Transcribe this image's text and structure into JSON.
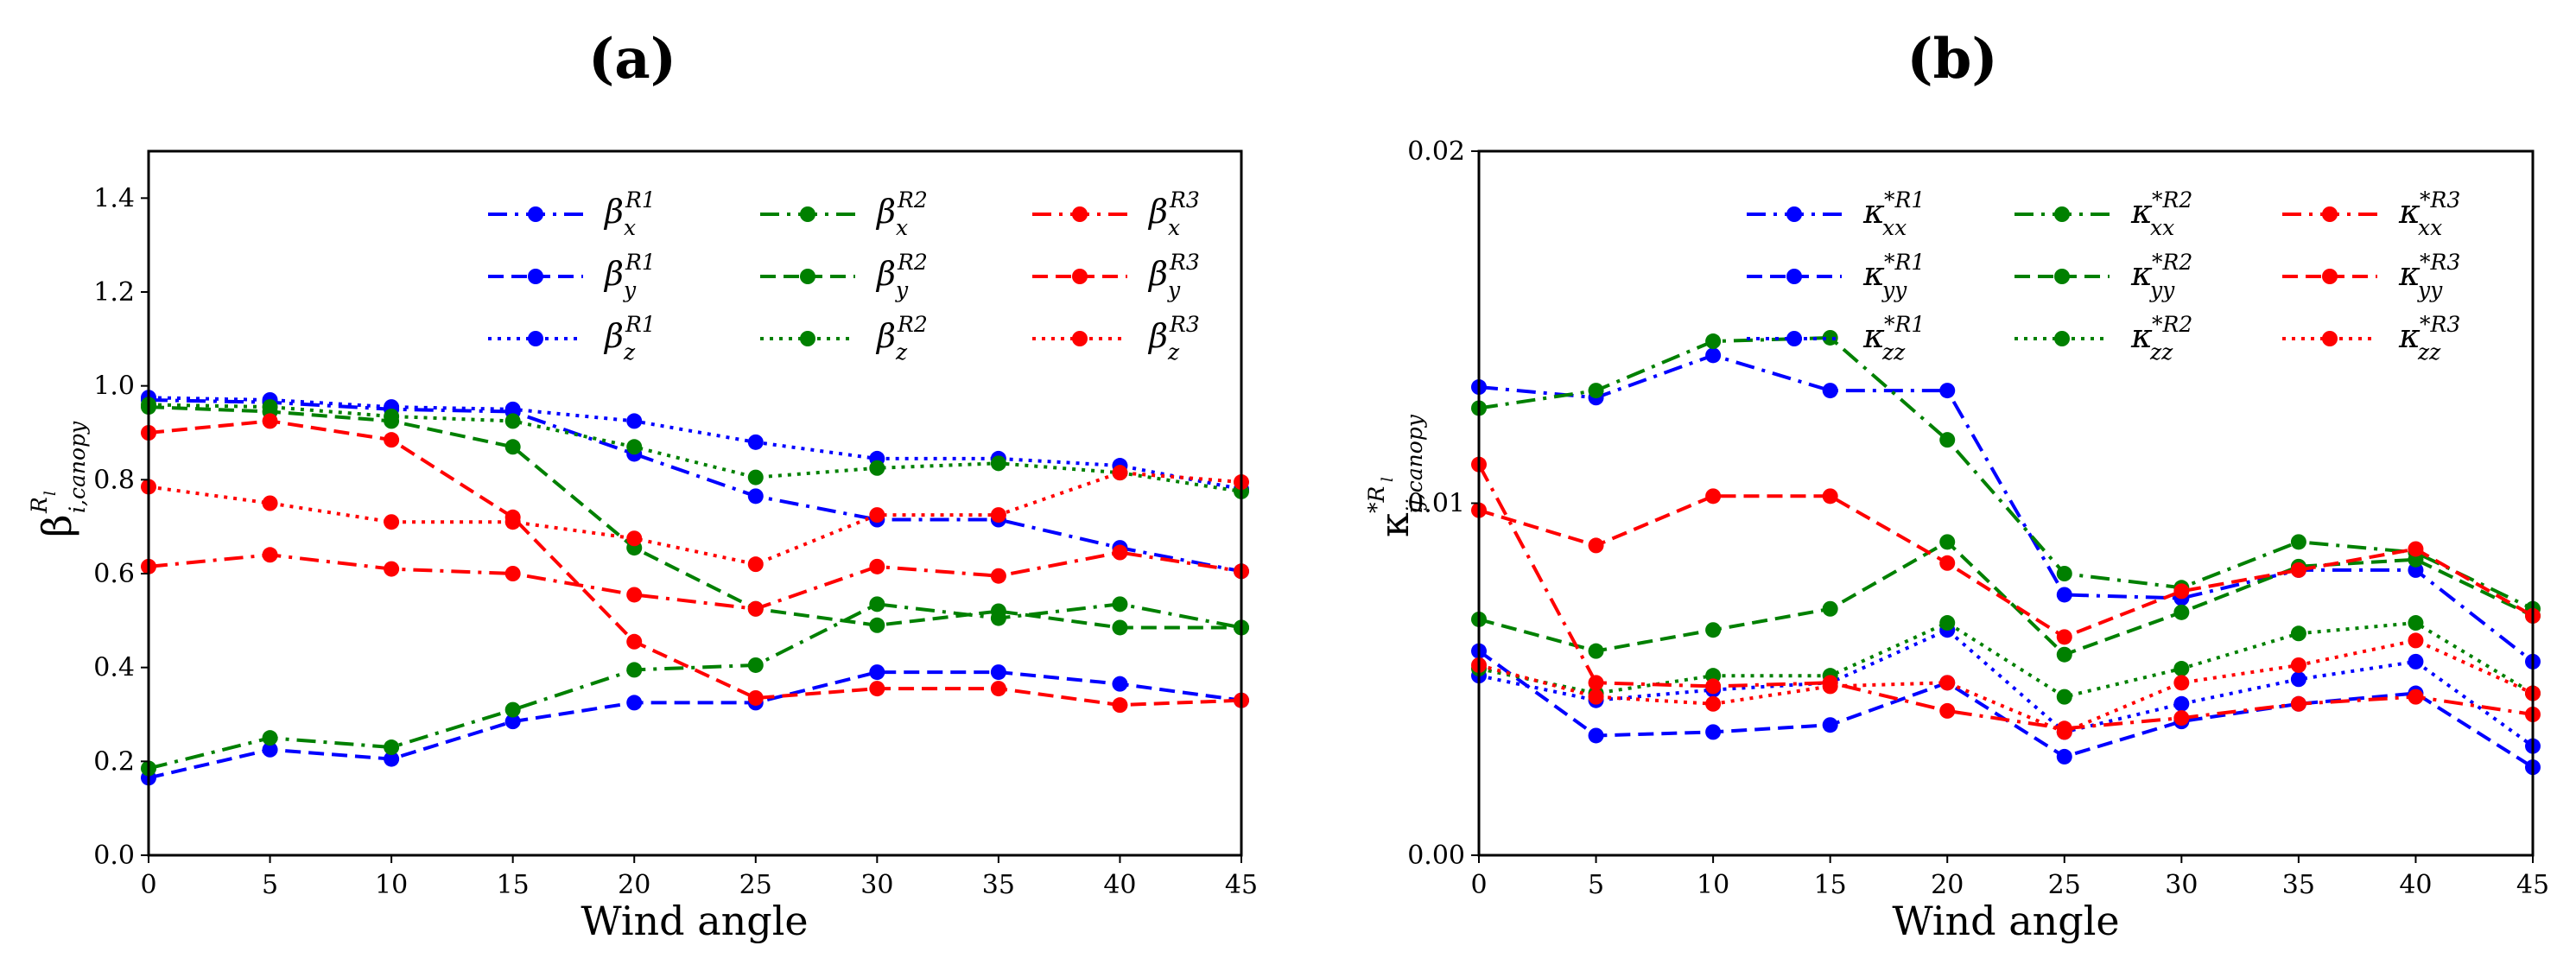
{
  "chart_data": [
    {
      "type": "line",
      "panel_label": "(a)",
      "xlabel": "Wind angle",
      "ylabel": "β",
      "ylabel_sup": "R",
      "ylabel_sup_sub": "l",
      "ylabel_sub": "i,canopy",
      "x": [
        0,
        5,
        10,
        15,
        20,
        25,
        30,
        35,
        40,
        45
      ],
      "xlim": [
        0,
        45
      ],
      "ylim": [
        0,
        1.5
      ],
      "xticks": [
        "0",
        "5",
        "10",
        "15",
        "20",
        "25",
        "30",
        "35",
        "40",
        "45"
      ],
      "yticks": [
        {
          "value": 0.0,
          "label": "0.0"
        },
        {
          "value": 0.2,
          "label": "0.2"
        },
        {
          "value": 0.4,
          "label": "0.4"
        },
        {
          "value": 0.6,
          "label": "0.6"
        },
        {
          "value": 0.8,
          "label": "0.8"
        },
        {
          "value": 1.0,
          "label": "1.0"
        },
        {
          "value": 1.2,
          "label": "1.2"
        },
        {
          "value": 1.4,
          "label": "1.4"
        }
      ],
      "legend_location": "top-right",
      "legend_columns": 3,
      "series": [
        {
          "name": "β_x^R1",
          "base": "β",
          "sub": "x",
          "sup": "R1",
          "color": "#0000ff",
          "style": "dashdot",
          "values": [
            0.97,
            0.965,
            0.95,
            0.945,
            0.855,
            0.765,
            0.715,
            0.715,
            0.655,
            0.605
          ]
        },
        {
          "name": "β_y^R1",
          "base": "β",
          "sub": "y",
          "sup": "R1",
          "color": "#0000ff",
          "style": "dashed",
          "values": [
            0.165,
            0.225,
            0.205,
            0.285,
            0.325,
            0.325,
            0.39,
            0.39,
            0.365,
            0.33
          ]
        },
        {
          "name": "β_z^R1",
          "base": "β",
          "sub": "z",
          "sup": "R1",
          "color": "#0000ff",
          "style": "dotted",
          "values": [
            0.975,
            0.97,
            0.955,
            0.95,
            0.925,
            0.88,
            0.845,
            0.845,
            0.83,
            0.78
          ]
        },
        {
          "name": "β_x^R2",
          "base": "β",
          "sub": "x",
          "sup": "R2",
          "color": "#008000",
          "style": "dashdot",
          "values": [
            0.185,
            0.25,
            0.23,
            0.31,
            0.395,
            0.405,
            0.535,
            0.505,
            0.535,
            0.485
          ]
        },
        {
          "name": "β_y^R2",
          "base": "β",
          "sub": "y",
          "sup": "R2",
          "color": "#008000",
          "style": "dashed",
          "values": [
            0.955,
            0.945,
            0.925,
            0.87,
            0.655,
            0.525,
            0.49,
            0.52,
            0.485,
            0.485
          ]
        },
        {
          "name": "β_z^R2",
          "base": "β",
          "sub": "z",
          "sup": "R2",
          "color": "#008000",
          "style": "dotted",
          "values": [
            0.96,
            0.955,
            0.935,
            0.925,
            0.87,
            0.805,
            0.825,
            0.835,
            0.815,
            0.775
          ]
        },
        {
          "name": "β_x^R3",
          "base": "β",
          "sub": "x",
          "sup": "R3",
          "color": "#ff0000",
          "style": "dashdot",
          "values": [
            0.615,
            0.64,
            0.61,
            0.6,
            0.555,
            0.525,
            0.615,
            0.595,
            0.645,
            0.605
          ]
        },
        {
          "name": "β_y^R3",
          "base": "β",
          "sub": "y",
          "sup": "R3",
          "color": "#ff0000",
          "style": "dashed",
          "values": [
            0.9,
            0.925,
            0.885,
            0.72,
            0.455,
            0.335,
            0.355,
            0.355,
            0.32,
            0.33
          ]
        },
        {
          "name": "β_z^R3",
          "base": "β",
          "sub": "z",
          "sup": "R3",
          "color": "#ff0000",
          "style": "dotted",
          "values": [
            0.785,
            0.75,
            0.71,
            0.71,
            0.675,
            0.62,
            0.725,
            0.725,
            0.815,
            0.795
          ]
        }
      ]
    },
    {
      "type": "line",
      "panel_label": "(b)",
      "xlabel": "Wind angle",
      "ylabel": "κ",
      "ylabel_sup": "*R",
      "ylabel_sup_sub": "l",
      "ylabel_sub": "ij,canopy",
      "x": [
        0,
        5,
        10,
        15,
        20,
        25,
        30,
        35,
        40,
        45
      ],
      "xlim": [
        0,
        45
      ],
      "ylim": [
        0,
        0.02
      ],
      "xticks": [
        "0",
        "5",
        "10",
        "15",
        "20",
        "25",
        "30",
        "35",
        "40",
        "45"
      ],
      "yticks": [
        {
          "value": 0.0,
          "label": "0.00"
        },
        {
          "value": 0.01,
          "label": "0.01"
        },
        {
          "value": 0.02,
          "label": "0.02"
        }
      ],
      "legend_location": "top-right",
      "legend_columns": 3,
      "series": [
        {
          "name": "κ_xx^*R1",
          "base": "κ",
          "sub": "xx",
          "sup": "*R1",
          "color": "#0000ff",
          "style": "dashdot",
          "values": [
            0.0133,
            0.013,
            0.0142,
            0.0132,
            0.0132,
            0.0074,
            0.0073,
            0.0081,
            0.0081,
            0.0055
          ]
        },
        {
          "name": "κ_yy^*R1",
          "base": "κ",
          "sub": "yy",
          "sup": "*R1",
          "color": "#0000ff",
          "style": "dashed",
          "values": [
            0.0058,
            0.0034,
            0.0035,
            0.0037,
            0.0049,
            0.0028,
            0.0038,
            0.0043,
            0.0046,
            0.0025
          ]
        },
        {
          "name": "κ_zz^*R1",
          "base": "κ",
          "sub": "zz",
          "sup": "*R1",
          "color": "#0000ff",
          "style": "dotted",
          "values": [
            0.0051,
            0.0044,
            0.0047,
            0.0049,
            0.0064,
            0.0035,
            0.0043,
            0.005,
            0.0055,
            0.0031
          ]
        },
        {
          "name": "κ_xx^*R2",
          "base": "κ",
          "sub": "xx",
          "sup": "*R2",
          "color": "#008000",
          "style": "dashdot",
          "values": [
            0.0127,
            0.0132,
            0.0146,
            0.0147,
            0.0118,
            0.008,
            0.0076,
            0.0089,
            0.0086,
            0.007
          ]
        },
        {
          "name": "κ_yy^*R2",
          "base": "κ",
          "sub": "yy",
          "sup": "*R2",
          "color": "#008000",
          "style": "dashed",
          "values": [
            0.0067,
            0.0058,
            0.0064,
            0.007,
            0.0089,
            0.0057,
            0.0069,
            0.0082,
            0.0084,
            0.0068
          ]
        },
        {
          "name": "κ_zz^*R2",
          "base": "κ",
          "sub": "zz",
          "sup": "*R2",
          "color": "#008000",
          "style": "dotted",
          "values": [
            0.0053,
            0.0046,
            0.0051,
            0.0051,
            0.0066,
            0.0045,
            0.0053,
            0.0063,
            0.0066,
            0.0046
          ]
        },
        {
          "name": "κ_xx^*R3",
          "base": "κ",
          "sub": "xx",
          "sup": "*R3",
          "color": "#ff0000",
          "style": "dashdot",
          "values": [
            0.0111,
            0.0049,
            0.0048,
            0.0049,
            0.0041,
            0.0036,
            0.0039,
            0.0043,
            0.0045,
            0.004
          ]
        },
        {
          "name": "κ_yy^*R3",
          "base": "κ",
          "sub": "yy",
          "sup": "*R3",
          "color": "#ff0000",
          "style": "dashed",
          "values": [
            0.0098,
            0.0088,
            0.0102,
            0.0102,
            0.0083,
            0.0062,
            0.0075,
            0.0081,
            0.0087,
            0.0068
          ]
        },
        {
          "name": "κ_zz^*R3",
          "base": "κ",
          "sub": "zz",
          "sup": "*R3",
          "color": "#ff0000",
          "style": "dotted",
          "values": [
            0.0054,
            0.0045,
            0.0043,
            0.0048,
            0.0049,
            0.0035,
            0.0049,
            0.0054,
            0.0061,
            0.0046
          ]
        }
      ]
    }
  ]
}
